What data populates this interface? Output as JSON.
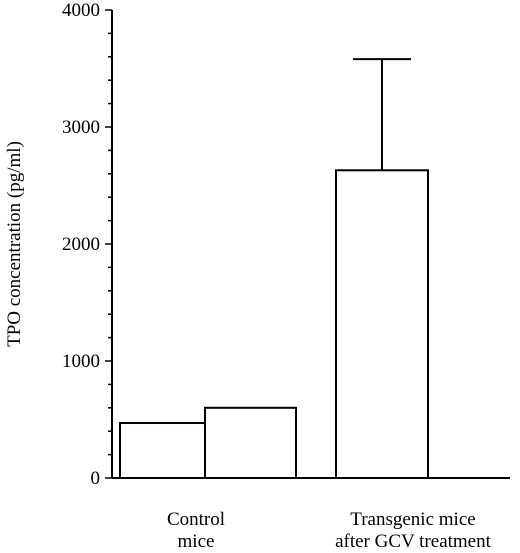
{
  "chart_data": {
    "type": "bar",
    "title": "",
    "xlabel": "",
    "ylabel": "TPO concentration (pg/ml)",
    "ylim": [
      0,
      4000
    ],
    "yticks": [
      0,
      1000,
      2000,
      3000,
      4000
    ],
    "ytick_labels": [
      "0",
      "1000",
      "2000",
      "3000",
      "4000"
    ],
    "minor_tick_step": 200,
    "grid": false,
    "legend": "none",
    "bar_fill": "#ffffff",
    "bar_stroke": "#000000",
    "groups": [
      {
        "label_lines": [
          "Control",
          "mice"
        ],
        "values": [
          470,
          600
        ],
        "error": [
          null,
          null
        ]
      },
      {
        "label_lines": [
          "Transgenic mice",
          "after GCV treatment"
        ],
        "values": [
          2630
        ],
        "error": [
          950
        ]
      }
    ]
  }
}
